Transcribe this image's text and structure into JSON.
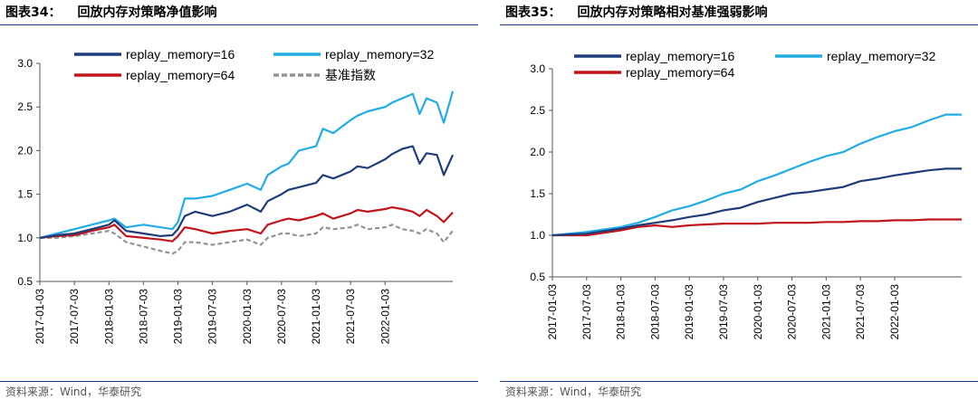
{
  "figures": [
    {
      "number": "图表34：",
      "title": "回放内存对策略净值影响",
      "source": "资料来源：Wind，华泰研究"
    },
    {
      "number": "图表35：",
      "title": "回放内存对策略相对基准强弱影响",
      "source": "资料来源：Wind，华泰研究"
    }
  ],
  "chart_data": [
    {
      "type": "line",
      "title": "回放内存对策略净值影响",
      "xlabel": "",
      "ylabel": "",
      "ylim": [
        0.5,
        3.0
      ],
      "yticks": [
        "0.5",
        "1.0",
        "1.5",
        "2.0",
        "2.5",
        "3.0"
      ],
      "x_tick_labels": [
        "2017-01-03",
        "2017-07-03",
        "2018-01-03",
        "2018-07-03",
        "2019-01-03",
        "2019-07-03",
        "2020-01-03",
        "2020-07-03",
        "2021-01-03",
        "2021-07-03",
        "2022-01-03"
      ],
      "x_range": [
        2017.0,
        2022.98
      ],
      "legend_position": "top",
      "series": [
        {
          "name": "replay_memory=16",
          "color": "#1f3d7a",
          "x": [
            2017.0,
            2017.25,
            2017.5,
            2017.75,
            2018.0,
            2018.08,
            2018.25,
            2018.5,
            2018.75,
            2018.92,
            2019.0,
            2019.1,
            2019.25,
            2019.5,
            2019.75,
            2020.0,
            2020.2,
            2020.3,
            2020.5,
            2020.6,
            2020.75,
            2021.0,
            2021.1,
            2021.25,
            2021.5,
            2021.6,
            2021.75,
            2022.0,
            2022.1,
            2022.25,
            2022.4,
            2022.5,
            2022.6,
            2022.75,
            2022.85,
            2022.98
          ],
          "values": [
            1.0,
            1.03,
            1.05,
            1.1,
            1.15,
            1.2,
            1.08,
            1.05,
            1.02,
            1.03,
            1.1,
            1.25,
            1.3,
            1.25,
            1.3,
            1.38,
            1.3,
            1.42,
            1.5,
            1.55,
            1.58,
            1.63,
            1.72,
            1.68,
            1.76,
            1.82,
            1.8,
            1.9,
            1.96,
            2.02,
            2.05,
            1.85,
            1.97,
            1.95,
            1.72,
            1.95
          ]
        },
        {
          "name": "replay_memory=32",
          "color": "#21ade3",
          "x": [
            2017.0,
            2017.25,
            2017.5,
            2017.75,
            2018.0,
            2018.08,
            2018.25,
            2018.5,
            2018.75,
            2018.92,
            2019.0,
            2019.1,
            2019.25,
            2019.5,
            2019.75,
            2020.0,
            2020.2,
            2020.3,
            2020.5,
            2020.6,
            2020.75,
            2021.0,
            2021.1,
            2021.25,
            2021.5,
            2021.6,
            2021.75,
            2022.0,
            2022.1,
            2022.25,
            2022.4,
            2022.5,
            2022.6,
            2022.75,
            2022.85,
            2022.98
          ],
          "values": [
            1.0,
            1.05,
            1.1,
            1.15,
            1.2,
            1.22,
            1.12,
            1.15,
            1.12,
            1.1,
            1.18,
            1.45,
            1.45,
            1.48,
            1.55,
            1.62,
            1.55,
            1.72,
            1.82,
            1.85,
            2.0,
            2.05,
            2.25,
            2.2,
            2.35,
            2.4,
            2.45,
            2.5,
            2.55,
            2.6,
            2.65,
            2.42,
            2.6,
            2.55,
            2.32,
            2.68
          ]
        },
        {
          "name": "replay_memory=64",
          "color": "#c0151b",
          "x": [
            2017.0,
            2017.25,
            2017.5,
            2017.75,
            2018.0,
            2018.08,
            2018.25,
            2018.5,
            2018.75,
            2018.92,
            2019.0,
            2019.1,
            2019.25,
            2019.5,
            2019.75,
            2020.0,
            2020.2,
            2020.3,
            2020.5,
            2020.6,
            2020.75,
            2021.0,
            2021.1,
            2021.25,
            2021.5,
            2021.6,
            2021.75,
            2022.0,
            2022.1,
            2022.25,
            2022.4,
            2022.5,
            2022.6,
            2022.75,
            2022.85,
            2022.98
          ],
          "values": [
            1.0,
            1.02,
            1.03,
            1.08,
            1.12,
            1.15,
            1.02,
            1.0,
            0.98,
            0.96,
            1.02,
            1.12,
            1.1,
            1.05,
            1.08,
            1.1,
            1.05,
            1.15,
            1.2,
            1.22,
            1.2,
            1.25,
            1.28,
            1.22,
            1.28,
            1.32,
            1.3,
            1.33,
            1.35,
            1.33,
            1.3,
            1.25,
            1.32,
            1.25,
            1.18,
            1.29
          ]
        },
        {
          "name": "基准指数",
          "color": "#939393",
          "dashed": true,
          "x": [
            2017.0,
            2017.25,
            2017.5,
            2017.75,
            2018.0,
            2018.08,
            2018.25,
            2018.5,
            2018.75,
            2018.92,
            2019.0,
            2019.1,
            2019.25,
            2019.5,
            2019.75,
            2020.0,
            2020.2,
            2020.3,
            2020.5,
            2020.6,
            2020.75,
            2021.0,
            2021.1,
            2021.25,
            2021.5,
            2021.6,
            2021.75,
            2022.0,
            2022.1,
            2022.25,
            2022.4,
            2022.5,
            2022.6,
            2022.75,
            2022.85,
            2022.98
          ],
          "values": [
            1.0,
            1.0,
            1.02,
            1.05,
            1.08,
            1.05,
            0.95,
            0.9,
            0.85,
            0.82,
            0.85,
            0.95,
            0.95,
            0.92,
            0.95,
            0.98,
            0.92,
            1.0,
            1.05,
            1.05,
            1.02,
            1.05,
            1.12,
            1.1,
            1.12,
            1.15,
            1.1,
            1.12,
            1.15,
            1.1,
            1.08,
            1.05,
            1.1,
            1.05,
            0.95,
            1.08
          ]
        }
      ]
    },
    {
      "type": "line",
      "title": "回放内存对策略相对基准强弱影响",
      "xlabel": "",
      "ylabel": "",
      "ylim": [
        0.5,
        3.0
      ],
      "yticks": [
        "0.5",
        "1.0",
        "1.5",
        "2.0",
        "2.5",
        "3.0"
      ],
      "x_tick_labels": [
        "2017-01-03",
        "2017-07-03",
        "2018-01-03",
        "2018-07-03",
        "2019-01-03",
        "2019-07-03",
        "2020-01-03",
        "2020-07-03",
        "2021-01-03",
        "2021-07-03",
        "2022-01-03"
      ],
      "x_range": [
        2017.0,
        2022.98
      ],
      "legend_position": "top",
      "series": [
        {
          "name": "replay_memory=16",
          "color": "#1f3d7a",
          "x": [
            2017.0,
            2017.5,
            2018.0,
            2018.25,
            2018.5,
            2018.75,
            2019.0,
            2019.25,
            2019.5,
            2019.75,
            2020.0,
            2020.25,
            2020.5,
            2020.75,
            2021.0,
            2021.25,
            2021.5,
            2021.75,
            2022.0,
            2022.25,
            2022.5,
            2022.75,
            2022.98
          ],
          "values": [
            1.0,
            1.02,
            1.08,
            1.12,
            1.15,
            1.18,
            1.22,
            1.25,
            1.3,
            1.33,
            1.4,
            1.45,
            1.5,
            1.52,
            1.55,
            1.58,
            1.65,
            1.68,
            1.72,
            1.75,
            1.78,
            1.8,
            1.8
          ]
        },
        {
          "name": "replay_memory=32",
          "color": "#21ade3",
          "x": [
            2017.0,
            2017.5,
            2018.0,
            2018.25,
            2018.5,
            2018.75,
            2019.0,
            2019.25,
            2019.5,
            2019.75,
            2020.0,
            2020.25,
            2020.5,
            2020.75,
            2021.0,
            2021.25,
            2021.5,
            2021.75,
            2022.0,
            2022.25,
            2022.5,
            2022.75,
            2022.98
          ],
          "values": [
            1.0,
            1.04,
            1.1,
            1.15,
            1.22,
            1.3,
            1.35,
            1.42,
            1.5,
            1.55,
            1.65,
            1.72,
            1.8,
            1.88,
            1.95,
            2.0,
            2.1,
            2.18,
            2.25,
            2.3,
            2.38,
            2.45,
            2.45
          ]
        },
        {
          "name": "replay_memory=64",
          "color": "#c0151b",
          "x": [
            2017.0,
            2017.5,
            2018.0,
            2018.25,
            2018.5,
            2018.75,
            2019.0,
            2019.25,
            2019.5,
            2019.75,
            2020.0,
            2020.25,
            2020.5,
            2020.75,
            2021.0,
            2021.25,
            2021.5,
            2021.75,
            2022.0,
            2022.25,
            2022.5,
            2022.75,
            2022.98
          ],
          "values": [
            1.0,
            1.0,
            1.06,
            1.1,
            1.12,
            1.1,
            1.12,
            1.13,
            1.14,
            1.14,
            1.14,
            1.15,
            1.15,
            1.15,
            1.16,
            1.16,
            1.17,
            1.17,
            1.18,
            1.18,
            1.19,
            1.19,
            1.19
          ]
        }
      ]
    }
  ]
}
